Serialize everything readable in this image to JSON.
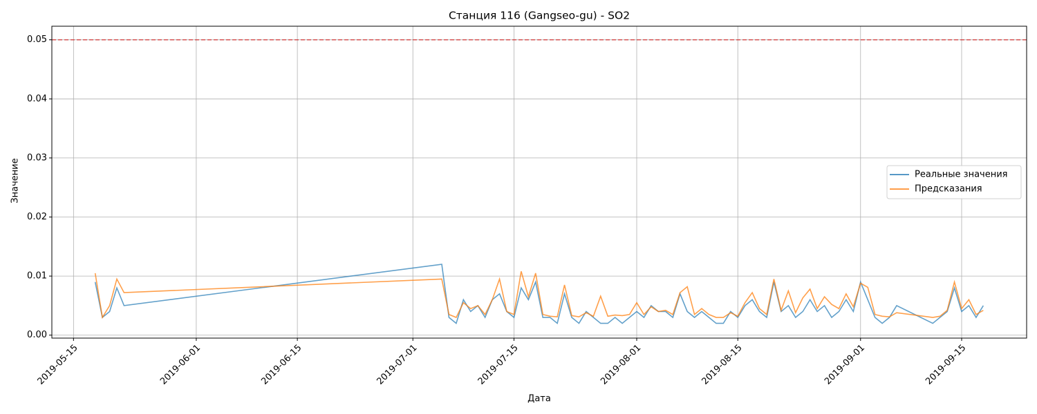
{
  "chart_data": {
    "type": "line",
    "title": "Станция 116 (Gangseo-gu) - SO2",
    "xlabel": "Дата",
    "ylabel": "Значение",
    "x": [
      "2019-05-18",
      "2019-05-19",
      "2019-05-20",
      "2019-05-21",
      "2019-05-22",
      "2019-07-05",
      "2019-07-06",
      "2019-07-07",
      "2019-07-08",
      "2019-07-09",
      "2019-07-10",
      "2019-07-11",
      "2019-07-12",
      "2019-07-13",
      "2019-07-14",
      "2019-07-15",
      "2019-07-16",
      "2019-07-17",
      "2019-07-18",
      "2019-07-19",
      "2019-07-20",
      "2019-07-21",
      "2019-07-22",
      "2019-07-23",
      "2019-07-24",
      "2019-07-25",
      "2019-07-26",
      "2019-07-27",
      "2019-07-28",
      "2019-07-29",
      "2019-07-30",
      "2019-07-31",
      "2019-08-01",
      "2019-08-02",
      "2019-08-03",
      "2019-08-04",
      "2019-08-05",
      "2019-08-06",
      "2019-08-07",
      "2019-08-08",
      "2019-08-09",
      "2019-08-10",
      "2019-08-11",
      "2019-08-12",
      "2019-08-13",
      "2019-08-14",
      "2019-08-15",
      "2019-08-16",
      "2019-08-17",
      "2019-08-18",
      "2019-08-19",
      "2019-08-20",
      "2019-08-21",
      "2019-08-22",
      "2019-08-23",
      "2019-08-24",
      "2019-08-25",
      "2019-08-26",
      "2019-08-27",
      "2019-08-28",
      "2019-08-29",
      "2019-08-30",
      "2019-08-31",
      "2019-09-01",
      "2019-09-02",
      "2019-09-03",
      "2019-09-04",
      "2019-09-05",
      "2019-09-06",
      "2019-09-11",
      "2019-09-12",
      "2019-09-13",
      "2019-09-14",
      "2019-09-15",
      "2019-09-16",
      "2019-09-17",
      "2019-09-18"
    ],
    "series": [
      {
        "name": "Реальные значения",
        "color": "#1f77b4",
        "values": [
          0.009,
          0.003,
          0.004,
          0.008,
          0.005,
          0.012,
          0.003,
          0.002,
          0.006,
          0.004,
          0.005,
          0.003,
          0.006,
          0.007,
          0.004,
          0.003,
          0.008,
          0.006,
          0.009,
          0.003,
          0.003,
          0.002,
          0.007,
          0.003,
          0.002,
          0.004,
          0.003,
          0.002,
          0.002,
          0.003,
          0.002,
          0.003,
          0.004,
          0.003,
          0.005,
          0.004,
          0.004,
          0.003,
          0.007,
          0.004,
          0.003,
          0.004,
          0.003,
          0.002,
          0.002,
          0.004,
          0.003,
          0.005,
          0.006,
          0.004,
          0.003,
          0.009,
          0.004,
          0.005,
          0.003,
          0.004,
          0.006,
          0.004,
          0.005,
          0.003,
          0.004,
          0.006,
          0.004,
          0.009,
          0.006,
          0.003,
          0.002,
          0.003,
          0.005,
          0.002,
          0.003,
          0.004,
          0.008,
          0.004,
          0.005,
          0.003,
          0.005
        ]
      },
      {
        "name": "Предсказания",
        "color": "#ff7f0e",
        "values": [
          0.0105,
          0.003,
          0.005,
          0.0095,
          0.0072,
          0.0095,
          0.0035,
          0.003,
          0.0055,
          0.0045,
          0.005,
          0.0035,
          0.006,
          0.0095,
          0.004,
          0.0035,
          0.0108,
          0.0065,
          0.0105,
          0.0035,
          0.0032,
          0.0031,
          0.0085,
          0.0033,
          0.0031,
          0.0038,
          0.0032,
          0.0066,
          0.0032,
          0.0034,
          0.0033,
          0.0035,
          0.0055,
          0.0035,
          0.0048,
          0.004,
          0.0042,
          0.0035,
          0.0072,
          0.0082,
          0.0035,
          0.0045,
          0.0035,
          0.003,
          0.003,
          0.0038,
          0.0032,
          0.0055,
          0.0072,
          0.0045,
          0.0035,
          0.0095,
          0.0042,
          0.0075,
          0.0038,
          0.0063,
          0.0078,
          0.0045,
          0.0065,
          0.0052,
          0.0045,
          0.007,
          0.0048,
          0.0088,
          0.0081,
          0.0035,
          0.0032,
          0.0031,
          0.0038,
          0.003,
          0.0032,
          0.0042,
          0.009,
          0.0045,
          0.006,
          0.0035,
          0.0042
        ]
      }
    ],
    "threshold": 0.05,
    "threshold_color": "#d62728",
    "xlim": [
      "2019-05-12",
      "2019-09-24"
    ],
    "xticks": [
      "2019-05-15",
      "2019-06-01",
      "2019-06-15",
      "2019-07-01",
      "2019-07-15",
      "2019-08-01",
      "2019-08-15",
      "2019-09-01",
      "2019-09-15"
    ],
    "ylim": [
      -0.0005,
      0.0523
    ],
    "yticks": [
      {
        "value": 0,
        "label": "0.00"
      },
      0.01,
      0.02,
      0.03,
      0.04,
      0.05
    ],
    "grid": true,
    "legend": "center right"
  }
}
